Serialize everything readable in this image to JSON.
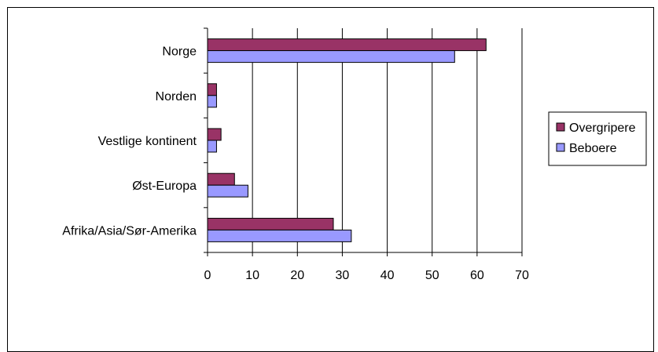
{
  "chart_data": {
    "type": "bar",
    "orientation": "horizontal",
    "categories": [
      "Norge",
      "Norden",
      "Vestlige kontinent",
      "Øst-Europa",
      "Afrika/Asia/Sør-Amerika"
    ],
    "series": [
      {
        "name": "Overgripere",
        "color": "#993366",
        "values": [
          62,
          2,
          3,
          6,
          28
        ]
      },
      {
        "name": "Beboere",
        "color": "#9999ff",
        "values": [
          55,
          2,
          2,
          9,
          32
        ]
      }
    ],
    "xlim": [
      0,
      70
    ],
    "xticks": [
      0,
      10,
      20,
      30,
      40,
      50,
      60,
      70
    ],
    "grid": true,
    "legend_position": "right"
  }
}
